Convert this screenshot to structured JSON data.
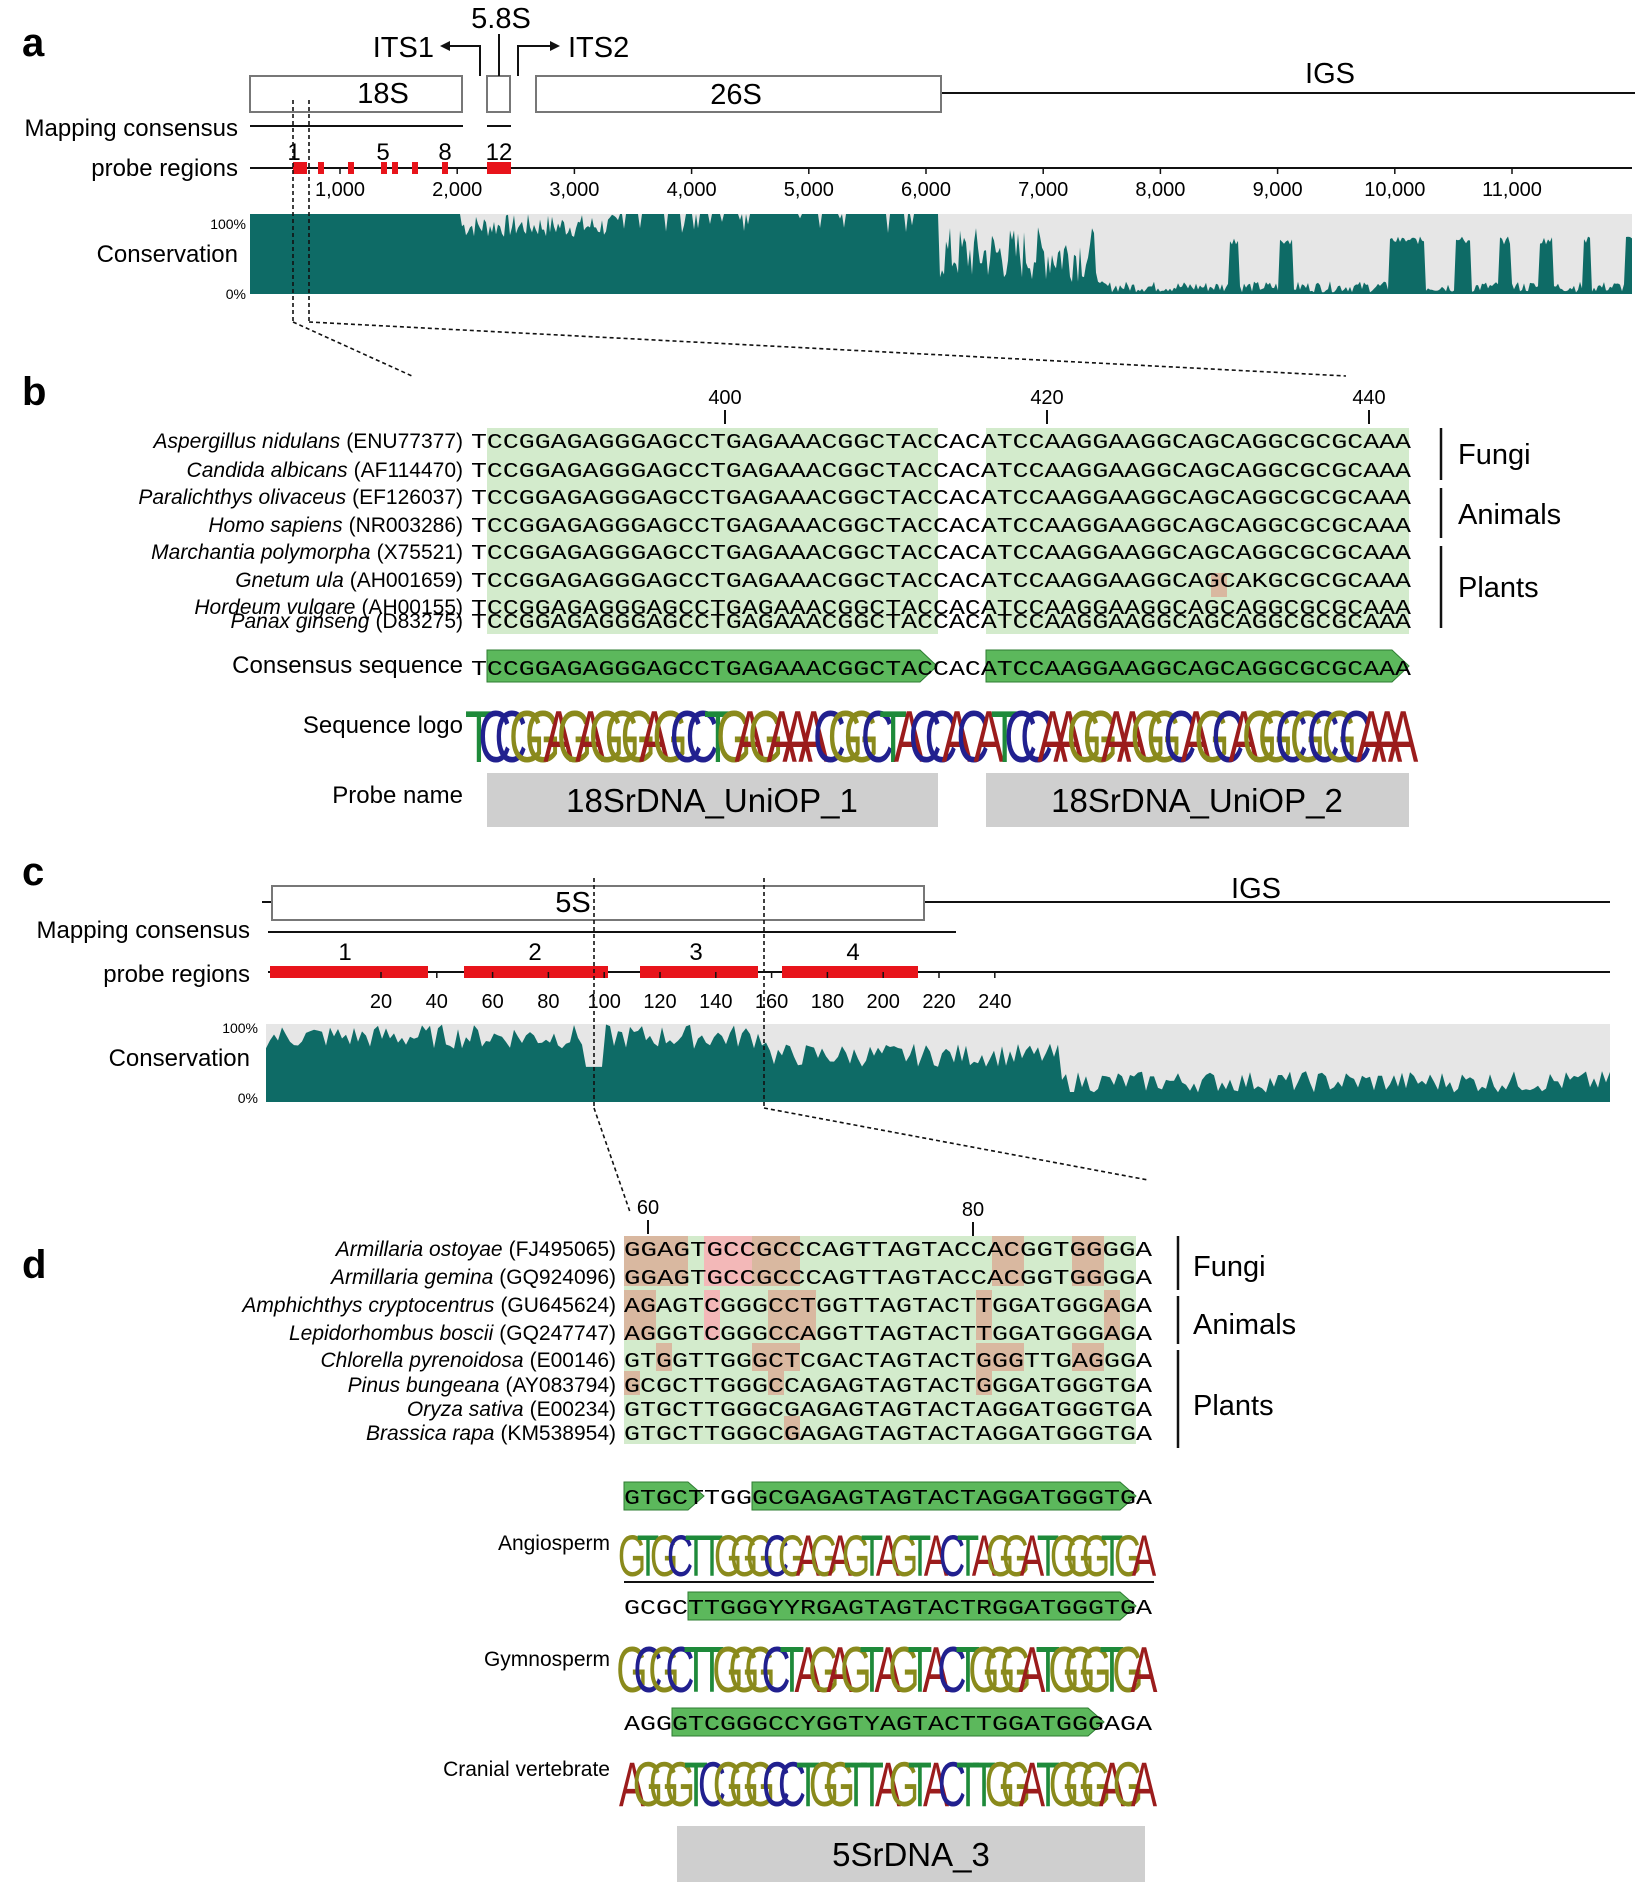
{
  "panel_labels": {
    "a": "a",
    "b": "b",
    "c": "c",
    "d": "d"
  },
  "panel_a": {
    "regions": {
      "r18s": "18S",
      "r58s": "5.8S",
      "r26s": "26S",
      "its1": "ITS1",
      "its2": "ITS2",
      "igs": "IGS"
    },
    "mapping_label": "Mapping consensus",
    "probe_label": "probe regions",
    "probe_numbers": [
      "1",
      "5",
      "8",
      "12"
    ],
    "axis_ticks": [
      "1,000",
      "2,000",
      "3,000",
      "4,000",
      "5,000",
      "6,000",
      "7,000",
      "8,000",
      "9,000",
      "10,000",
      "11,000"
    ],
    "conservation_label": "Conservation",
    "pct_high": "100%",
    "pct_low": "0%"
  },
  "panel_b": {
    "positions": [
      "400",
      "420",
      "440"
    ],
    "species": [
      {
        "name": "Aspergillus nidulans",
        "acc": "(ENU77377)",
        "seq": "TCCGGAGAGGGAGCCTGAGAAACGGCTACCACATCCAAGGAAGGCAGCAGGCGCGCAAA"
      },
      {
        "name": "Candida albicans",
        "acc": "(AF114470)",
        "seq": "TCCGGAGAGGGAGCCTGAGAAACGGCTACCACATCCAAGGAAGGCAGCAGGCGCGCAAA"
      },
      {
        "name": "Paralichthys olivaceus",
        "acc": "(EF126037)",
        "seq": "TCCGGAGAGGGAGCCTGAGAAACGGCTACCACATCCAAGGAAGGCAGCAGGCGCGCAAA"
      },
      {
        "name": "Homo sapiens",
        "acc": "(NR003286)",
        "seq": "TCCGGAGAGGGAGCCTGAGAAACGGCTACCACATCCAAGGAAGGCAGCAGGCGCGCAAA"
      },
      {
        "name": "Marchantia polymorpha",
        "acc": "(X75521)",
        "seq": "TCCGGAGAGGGAGCCTGAGAAACGGCTACCACATCCAAGGAAGGCAGCAGGCGCGCAAA"
      },
      {
        "name": "Gnetum ula",
        "acc": "(AH001659)",
        "seq": "TCCGGAGAGGGAGCCTGAGAAACGGCTACCACATCCAAGGAAGGCAGCAKGCGCGCAAA"
      },
      {
        "name": "Hordeum vulgare",
        "acc": "(AH00155)",
        "seq": "TCCGGAGAGGGAGCCTGAGAAACGGCTACCACATCCAAGGAAGGCAGCAGGCGCGCAAA"
      },
      {
        "name": "Panax ginseng",
        "acc": "(D83275)",
        "seq": "TCCGGAGAGGGAGCCTGAGAAACGGCTACCACATCCAAGGAAGGCAGCAGGCGCGCAAA"
      }
    ],
    "groups": [
      "Fungi",
      "Animals",
      "Plants"
    ],
    "consensus_label": "Consensus sequence",
    "consensus_seq": "TCCGGAGAGGGAGCCTGAGAAACGGCTACCACATCCAAGGAAGGCAGCAGGCGCGCAAA",
    "logo_label": "Sequence logo",
    "logo_seq": "TCCGGAGAGGGAGCCTGAGAAACGGCTACCACATCCAAGGAAGGCAGCAGGCGCGCAAA",
    "probe_name_label": "Probe name",
    "probes": [
      "18SrDNA_UniOP_1",
      "18SrDNA_UniOP_2"
    ]
  },
  "panel_c": {
    "region_5s": "5S",
    "igs": "IGS",
    "mapping_label": "Mapping consensus",
    "probe_label": "probe regions",
    "probe_numbers": [
      "1",
      "2",
      "3",
      "4"
    ],
    "axis_ticks": [
      "20",
      "40",
      "60",
      "80",
      "100",
      "120",
      "140",
      "160",
      "180",
      "200",
      "220",
      "240"
    ],
    "conservation_label": "Conservation",
    "pct_high": "100%",
    "pct_low": "0%"
  },
  "panel_d": {
    "positions": [
      "60",
      "80"
    ],
    "species": [
      {
        "name": "Armillaria ostoyae",
        "acc": "(FJ495065)",
        "seq": "GGAGTGCCGCCCAGTTAGTACCACGGTGGGGA"
      },
      {
        "name": "Armillaria gemina",
        "acc": "(GQ924096)",
        "seq": "GGAGTGCCGCCCAGTTAGTACCACGGTGGGGA"
      },
      {
        "name": "Amphichthys cryptocentrus",
        "acc": "(GU645624)",
        "seq": "AGAGTCGGGCCTGGTTAGTACTTGGATGGGAGA"
      },
      {
        "name": "Lepidorhombus boscii",
        "acc": "(GQ247747)",
        "seq": "AGGGTCGGGCCAGGTTAGTACTTGGATGGGAGA"
      },
      {
        "name": "Chlorella pyrenoidosa",
        "acc": "(E00146)",
        "seq": "GTGGTTGGGCTCGACTAGTACTGGGTTGAGGGA"
      },
      {
        "name": "Pinus bungeana",
        "acc": "(AY083794)",
        "seq": "GCGCTTGGGCCAGAGTAGTACTGGGATGGGTGA"
      },
      {
        "name": "Oryza sativa",
        "acc": "(E00234)",
        "seq": "GTGCTTGGGCGAGAGTAGTACTAGGATGGGTGA"
      },
      {
        "name": "Brassica rapa",
        "acc": "(KM538954)",
        "seq": "GTGCTTGGGCGAGAGTAGTACTAGGATGGGTGA"
      }
    ],
    "groups": [
      "Fungi",
      "Animals",
      "Plants"
    ],
    "clades": [
      {
        "label": "Angiosperm",
        "consensus": "GTGCTTGGGCGAGAGTAGTACTAGGATGGGTGA",
        "logo": "GTGCTTGGGCGAGAGTAGTACTAGGATGGGTGA"
      },
      {
        "label": "Gymnosperm",
        "consensus": "GCGCTTGGGYYRGAGTAGTACTRGGATGGGTGA",
        "logo": "GCGCTTGGGCTAGAGTAGTACTGGGATGGGTGA"
      },
      {
        "label": "Cranial vertebrate",
        "consensus": "AGGGTCGGGCCYGGTYAGTACTTGGATGGGAGA",
        "logo": "AGGGTCGGGCCTGGTTAGTACTTGGATGGGAGA"
      }
    ],
    "probe_name": "5SrDNA_3"
  },
  "colors": {
    "conservation_fill": "#0e6b66",
    "conservation_bg": "#e6e6e6",
    "probe_red": "#e8141b",
    "align_green": "#d3ebcc",
    "arrow_green": "#5cb85c",
    "variant_brown": "#d9b8a0",
    "variant_pink": "#f3b8b8",
    "probe_gray": "#cfcfcf",
    "logo_A": "#9b1c1c",
    "logo_C": "#21208f",
    "logo_G": "#8a8a1c",
    "logo_T": "#1e8a3a"
  }
}
